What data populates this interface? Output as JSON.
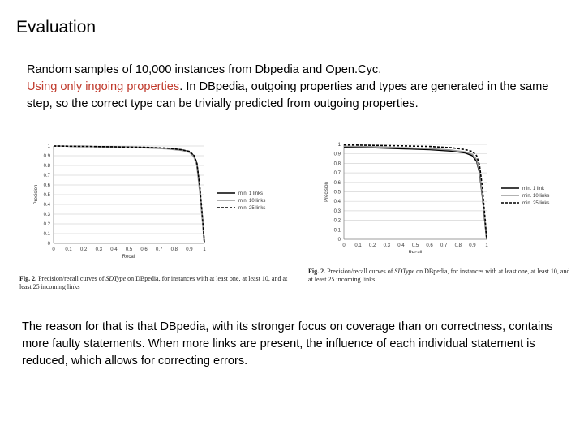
{
  "slide": {
    "title": "Evaluation",
    "intro_line1": "Random samples of 10,000 instances from Dbpedia and Open.Cyc.",
    "intro_highlight": "Using only ingoing properties",
    "intro_rest": ". In DBpedia, outgoing properties and types are generated in the same step, so the correct type can be trivially predicted from outgoing properties.",
    "conclusion": "The reason for that is that DBpedia, with its stronger focus on coverage than on correctness, contains more faulty statements. When more links are present, the influence of each individual statement is reduced, which allows for correcting errors.",
    "highlight_color": "#c0392b"
  },
  "figures": [
    {
      "caption_label": "Fig. 2.",
      "caption_pre": " Precision/recall curves of ",
      "caption_em": "SDType",
      "caption_post": " on DBpedia, for instances with at least one, at least 10, and at least 25 incoming links"
    },
    {
      "caption_label": "Fig. 2.",
      "caption_pre": " Precision/recall curves of ",
      "caption_em": "SDType",
      "caption_post": " on DBpedia, for instances with at least one, at least 10, and at least 25 incoming links"
    }
  ],
  "chart_data": [
    {
      "type": "line",
      "xlabel": "Recall",
      "ylabel": "Precision",
      "xlim": [
        0,
        1
      ],
      "ylim": [
        0,
        1
      ],
      "x_ticks": [
        "0",
        "0.1",
        "0.2",
        "0.3",
        "0.4",
        "0.5",
        "0.6",
        "0.7",
        "0.8",
        "0.9",
        "1"
      ],
      "y_ticks": [
        "0",
        "0.1",
        "0.2",
        "0.3",
        "0.4",
        "0.5",
        "0.6",
        "0.7",
        "0.8",
        "0.9",
        "1"
      ],
      "grid": true,
      "legend": "right",
      "series": [
        {
          "name": "min. 1 links",
          "color": "#000000",
          "style": "solid",
          "x": [
            0,
            0.2,
            0.4,
            0.6,
            0.75,
            0.85,
            0.9,
            0.93,
            0.95,
            0.97,
            0.99,
            1.0
          ],
          "y": [
            1.0,
            0.995,
            0.99,
            0.985,
            0.975,
            0.96,
            0.94,
            0.9,
            0.82,
            0.55,
            0.2,
            0.0
          ]
        },
        {
          "name": "min. 10 links",
          "color": "#999999",
          "style": "solid",
          "x": [
            0,
            0.2,
            0.4,
            0.6,
            0.75,
            0.85,
            0.9,
            0.93,
            0.95,
            0.97,
            0.99,
            1.0
          ],
          "y": [
            1.0,
            0.995,
            0.99,
            0.982,
            0.972,
            0.955,
            0.935,
            0.89,
            0.8,
            0.52,
            0.18,
            0.0
          ]
        },
        {
          "name": "min. 25 links",
          "color": "#000000",
          "style": "dashed",
          "x": [
            0,
            0.2,
            0.4,
            0.6,
            0.75,
            0.85,
            0.9,
            0.93,
            0.95,
            0.97,
            0.99,
            1.0
          ],
          "y": [
            1.0,
            0.996,
            0.992,
            0.987,
            0.978,
            0.962,
            0.945,
            0.905,
            0.83,
            0.58,
            0.22,
            0.0
          ]
        }
      ]
    },
    {
      "type": "line",
      "xlabel": "Recall",
      "ylabel": "Precision",
      "xlim": [
        0,
        1
      ],
      "ylim": [
        0,
        1
      ],
      "x_ticks": [
        "0",
        "0.1",
        "0.2",
        "0.3",
        "0.4",
        "0.5",
        "0.6",
        "0.7",
        "0.8",
        "0.9",
        "1"
      ],
      "y_ticks": [
        "0",
        "0.1",
        "0.2",
        "0.3",
        "0.4",
        "0.5",
        "0.6",
        "0.7",
        "0.8",
        "0.9",
        "1"
      ],
      "grid": true,
      "legend": "right",
      "series": [
        {
          "name": "min. 1 link",
          "color": "#000000",
          "style": "solid",
          "x": [
            0,
            0.2,
            0.4,
            0.6,
            0.75,
            0.85,
            0.9,
            0.93,
            0.95,
            0.97,
            0.99,
            1.0
          ],
          "y": [
            0.97,
            0.965,
            0.955,
            0.945,
            0.93,
            0.91,
            0.88,
            0.82,
            0.7,
            0.45,
            0.15,
            0.0
          ]
        },
        {
          "name": "min. 10 links",
          "color": "#999999",
          "style": "solid",
          "x": [
            0,
            0.2,
            0.4,
            0.6,
            0.75,
            0.85,
            0.9,
            0.93,
            0.95,
            0.97,
            0.99,
            1.0
          ],
          "y": [
            0.98,
            0.975,
            0.965,
            0.955,
            0.94,
            0.92,
            0.895,
            0.84,
            0.72,
            0.48,
            0.17,
            0.0
          ]
        },
        {
          "name": "min. 25 links",
          "color": "#000000",
          "style": "dashed",
          "x": [
            0,
            0.2,
            0.4,
            0.6,
            0.75,
            0.85,
            0.9,
            0.93,
            0.95,
            0.97,
            0.99,
            1.0
          ],
          "y": [
            0.995,
            0.99,
            0.985,
            0.978,
            0.965,
            0.945,
            0.925,
            0.88,
            0.78,
            0.55,
            0.2,
            0.0
          ]
        }
      ]
    }
  ]
}
